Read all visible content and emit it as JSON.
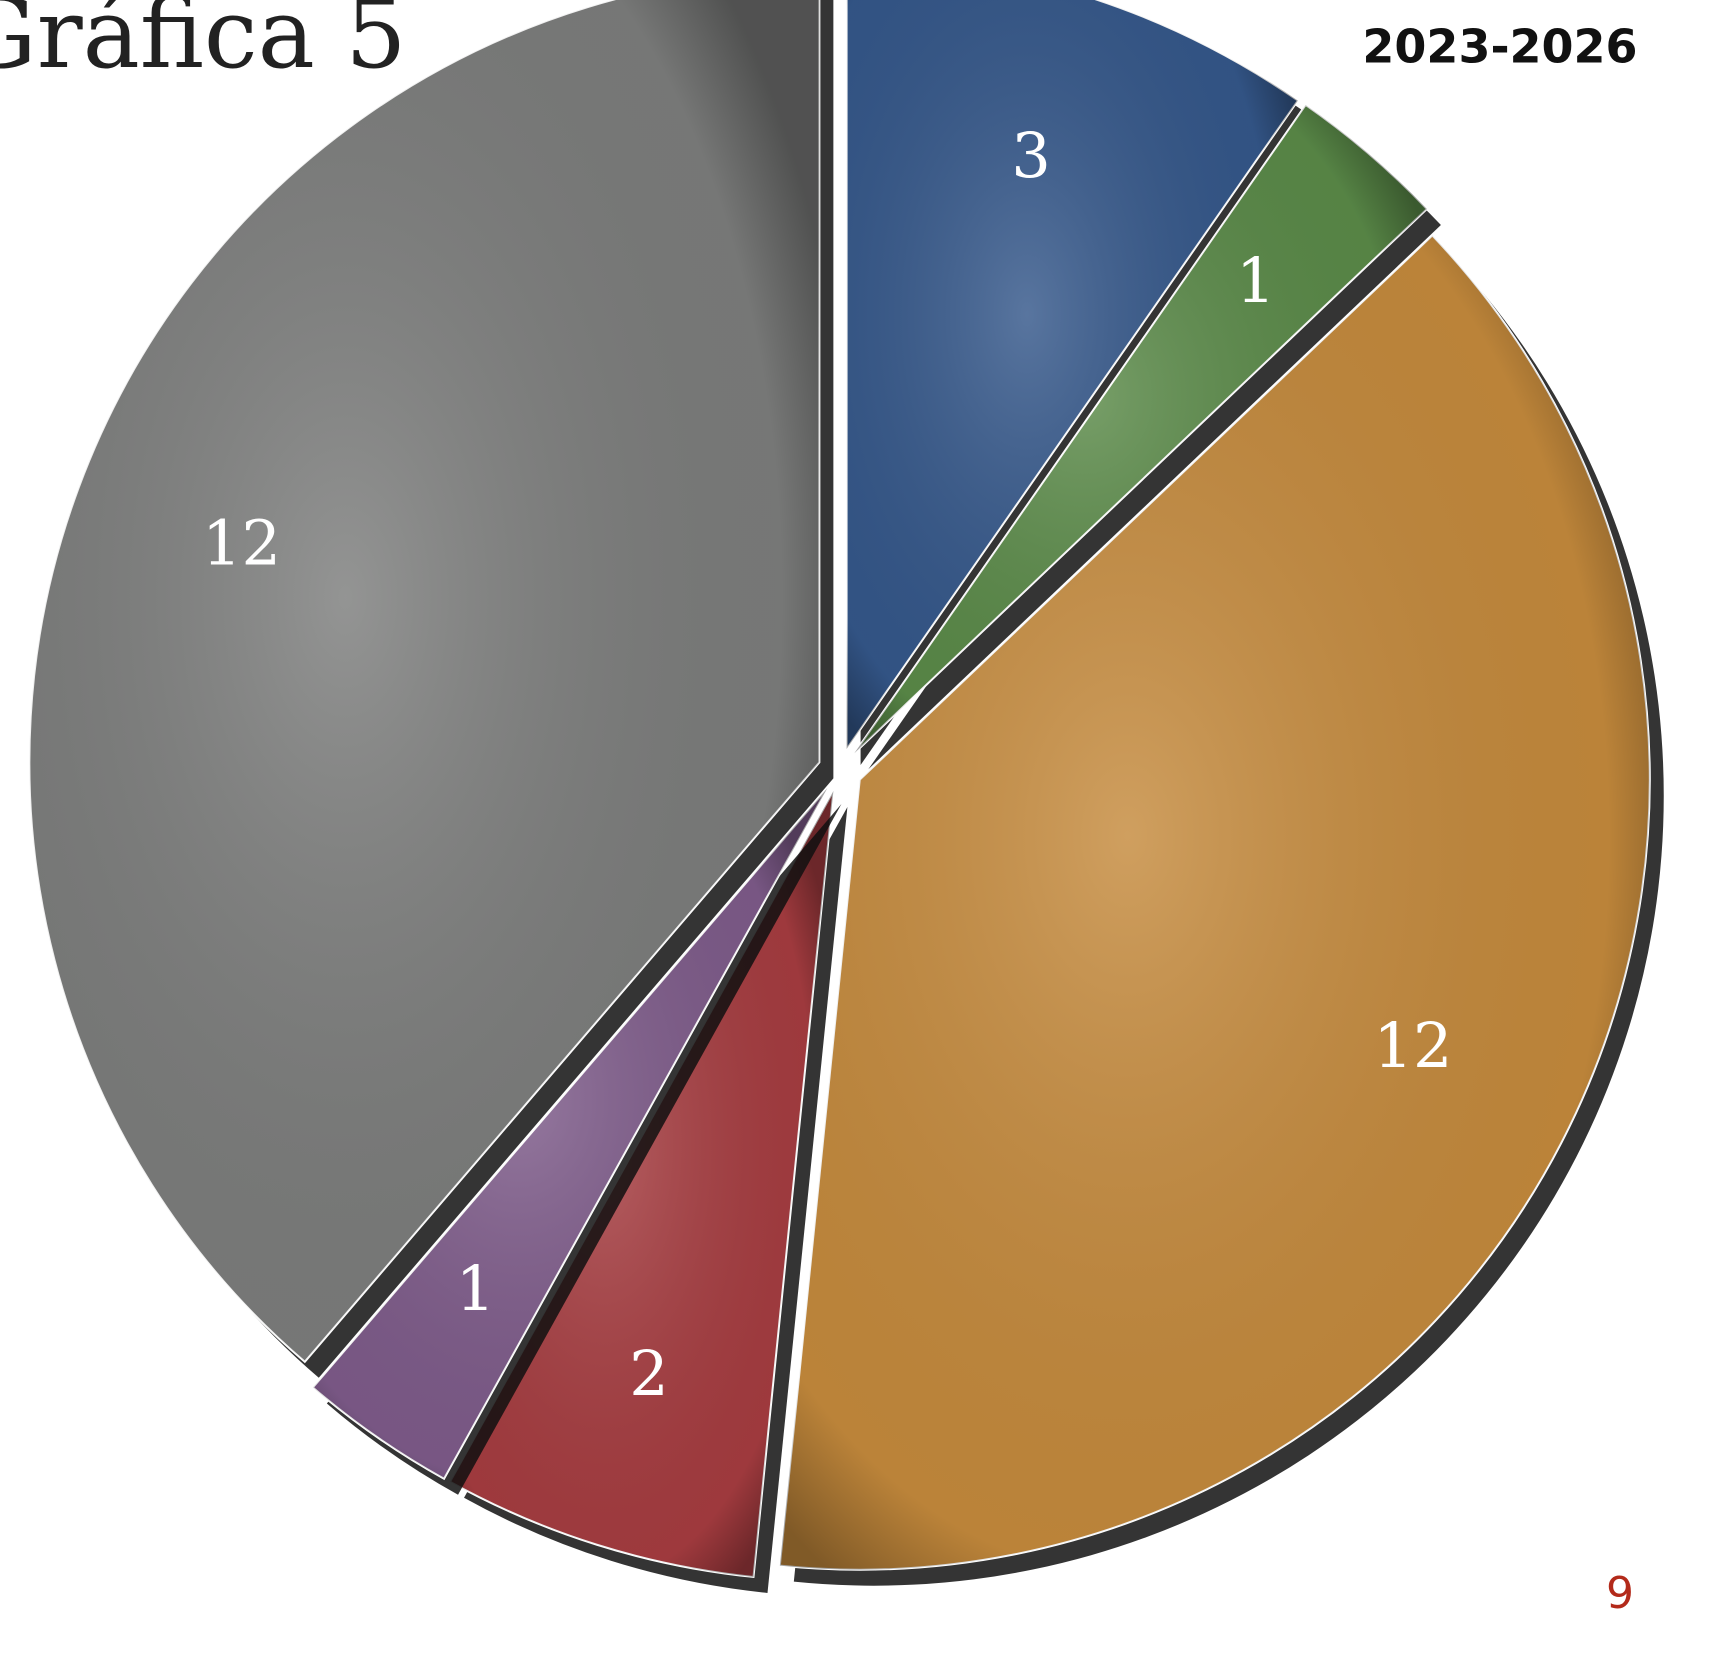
{
  "chart_data": {
    "type": "pie",
    "title": "Gráfica 5",
    "subtitle": "2023-2026",
    "page_number": "9",
    "categories": [
      null,
      null,
      null,
      null,
      null,
      null
    ],
    "values": [
      3,
      1,
      12,
      2,
      1,
      12
    ],
    "colors": [
      "#34578a",
      "#5a8a48",
      "#c58a3c",
      "#a63c40",
      "#7e5b8a",
      "#7c7d7c"
    ]
  }
}
